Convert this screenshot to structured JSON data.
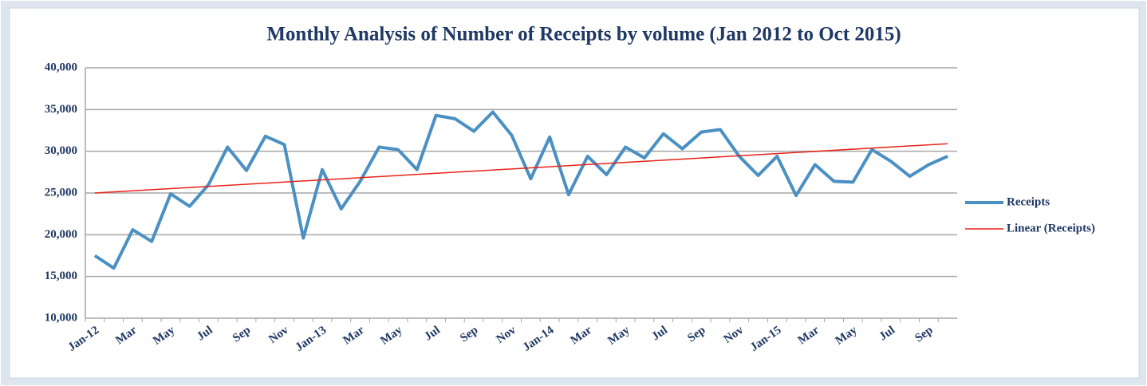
{
  "chart_data": {
    "type": "line",
    "title": "Monthly Analysis of Number of Receipts by volume (Jan 2012 to Oct 2015)",
    "categories": [
      "Jan-12",
      null,
      "Mar",
      null,
      "May",
      null,
      "Jul",
      null,
      "Sep",
      null,
      "Nov",
      null,
      "Jan-13",
      null,
      "Mar",
      null,
      "May",
      null,
      "Jul",
      null,
      "Sep",
      null,
      "Nov",
      null,
      "Jan-14",
      null,
      "Mar",
      null,
      "May",
      null,
      "Jul",
      null,
      "Sep",
      null,
      "Nov",
      null,
      "Jan-15",
      null,
      "Mar",
      null,
      "May",
      null,
      "Jul",
      null,
      "Sep",
      null
    ],
    "series": [
      {
        "name": "Receipts",
        "color": "#4a90c2",
        "values": [
          17500,
          16000,
          20600,
          19200,
          24900,
          23400,
          26000,
          30500,
          27700,
          31800,
          30800,
          19600,
          27800,
          23100,
          26400,
          30500,
          30200,
          27800,
          34300,
          33900,
          32400,
          34700,
          31900,
          26700,
          31700,
          24800,
          29400,
          27200,
          30500,
          29200,
          32100,
          30300,
          32300,
          32600,
          29400,
          27100,
          29400,
          24700,
          28400,
          26400,
          26300,
          30200,
          28800,
          27000,
          28400,
          29400
        ]
      }
    ],
    "trendline": {
      "name": "Linear (Receipts)",
      "color": "#e8221a",
      "start": 25000,
      "end": 30900
    },
    "ylim": [
      10000,
      40000
    ],
    "yticks": [
      {
        "value": 10000,
        "label": "10,000"
      },
      {
        "value": 15000,
        "label": "15,000"
      },
      {
        "value": 20000,
        "label": "20,000"
      },
      {
        "value": 25000,
        "label": "25,000"
      },
      {
        "value": 30000,
        "label": "30,000"
      },
      {
        "value": 35000,
        "label": "35,000"
      },
      {
        "value": 40000,
        "label": "40,000"
      }
    ],
    "grid": true,
    "legend": "right"
  }
}
